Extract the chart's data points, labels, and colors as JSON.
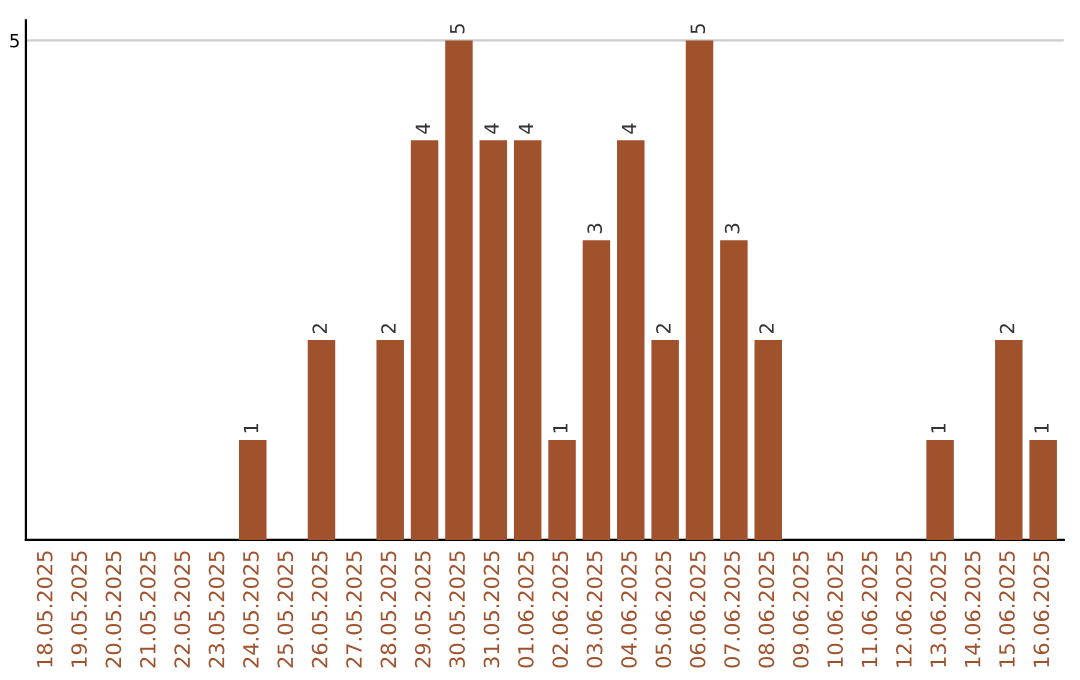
{
  "chart_data": {
    "type": "bar",
    "categories": [
      "18.05.2025",
      "19.05.2025",
      "20.05.2025",
      "21.05.2025",
      "22.05.2025",
      "23.05.2025",
      "24.05.2025",
      "25.05.2025",
      "26.05.2025",
      "27.05.2025",
      "28.05.2025",
      "29.05.2025",
      "30.05.2025",
      "31.05.2025",
      "01.06.2025",
      "02.06.2025",
      "03.06.2025",
      "04.06.2025",
      "05.06.2025",
      "06.06.2025",
      "07.06.2025",
      "08.06.2025",
      "09.06.2025",
      "10.06.2025",
      "11.06.2025",
      "12.06.2025",
      "13.06.2025",
      "14.06.2025",
      "15.06.2025",
      "16.06.2025"
    ],
    "values": [
      0,
      0,
      0,
      0,
      0,
      0,
      1,
      0,
      2,
      0,
      2,
      4,
      5,
      4,
      4,
      1,
      3,
      4,
      2,
      5,
      3,
      2,
      0,
      0,
      0,
      0,
      1,
      0,
      2,
      1
    ],
    "value_labels": [
      null,
      null,
      null,
      null,
      null,
      null,
      "1",
      null,
      "2",
      null,
      "2",
      "4",
      "5",
      "4",
      "4",
      "1",
      "3",
      "4",
      "2",
      "5",
      "3",
      "2",
      null,
      null,
      null,
      null,
      "1",
      null,
      "2",
      "1"
    ],
    "color": "#a0522d",
    "ylim": [
      0,
      5.2
    ],
    "yticks": [
      5
    ],
    "grid": "y",
    "legend": false
  }
}
